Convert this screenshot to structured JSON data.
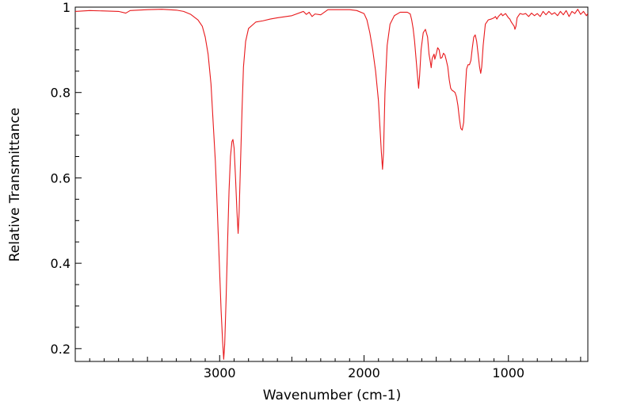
{
  "chart_data": {
    "type": "line",
    "title": "",
    "xlabel": "Wavenumber (cm-1)",
    "ylabel": "Relative Transmittance",
    "xlim": [
      4000,
      450
    ],
    "ylim": [
      0.17,
      1.0
    ],
    "x_reversed": true,
    "grid": false,
    "legend": "none",
    "x_ticks": [
      3000,
      2000,
      1000
    ],
    "x_tick_labels": [
      "3000",
      "2000",
      "1000"
    ],
    "y_ticks": [
      0.2,
      0.4,
      0.6,
      0.8,
      1.0
    ],
    "y_tick_labels": [
      "0.2",
      "0.4",
      "0.6",
      "0.8",
      "1"
    ],
    "series": [
      {
        "color": "#e8191c",
        "points": [
          [
            4000,
            0.99
          ],
          [
            3900,
            0.992
          ],
          [
            3800,
            0.991
          ],
          [
            3700,
            0.99
          ],
          [
            3650,
            0.986
          ],
          [
            3620,
            0.992
          ],
          [
            3500,
            0.994
          ],
          [
            3400,
            0.995
          ],
          [
            3300,
            0.993
          ],
          [
            3250,
            0.99
          ],
          [
            3200,
            0.983
          ],
          [
            3150,
            0.97
          ],
          [
            3120,
            0.955
          ],
          [
            3100,
            0.93
          ],
          [
            3080,
            0.89
          ],
          [
            3060,
            0.82
          ],
          [
            3050,
            0.76
          ],
          [
            3040,
            0.7
          ],
          [
            3030,
            0.64
          ],
          [
            3020,
            0.56
          ],
          [
            3010,
            0.47
          ],
          [
            3000,
            0.38
          ],
          [
            2990,
            0.29
          ],
          [
            2980,
            0.22
          ],
          [
            2972,
            0.175
          ],
          [
            2965,
            0.21
          ],
          [
            2955,
            0.32
          ],
          [
            2945,
            0.45
          ],
          [
            2935,
            0.57
          ],
          [
            2925,
            0.65
          ],
          [
            2915,
            0.685
          ],
          [
            2908,
            0.69
          ],
          [
            2900,
            0.67
          ],
          [
            2890,
            0.6
          ],
          [
            2880,
            0.52
          ],
          [
            2872,
            0.47
          ],
          [
            2865,
            0.52
          ],
          [
            2855,
            0.64
          ],
          [
            2845,
            0.76
          ],
          [
            2835,
            0.86
          ],
          [
            2820,
            0.92
          ],
          [
            2800,
            0.95
          ],
          [
            2750,
            0.965
          ],
          [
            2700,
            0.968
          ],
          [
            2650,
            0.972
          ],
          [
            2600,
            0.975
          ],
          [
            2500,
            0.98
          ],
          [
            2420,
            0.99
          ],
          [
            2400,
            0.983
          ],
          [
            2380,
            0.988
          ],
          [
            2360,
            0.978
          ],
          [
            2340,
            0.984
          ],
          [
            2300,
            0.982
          ],
          [
            2250,
            0.994
          ],
          [
            2150,
            0.994
          ],
          [
            2100,
            0.994
          ],
          [
            2050,
            0.992
          ],
          [
            2000,
            0.985
          ],
          [
            1980,
            0.97
          ],
          [
            1960,
            0.94
          ],
          [
            1940,
            0.9
          ],
          [
            1920,
            0.85
          ],
          [
            1900,
            0.78
          ],
          [
            1890,
            0.72
          ],
          [
            1880,
            0.66
          ],
          [
            1872,
            0.62
          ],
          [
            1865,
            0.66
          ],
          [
            1855,
            0.8
          ],
          [
            1840,
            0.91
          ],
          [
            1820,
            0.96
          ],
          [
            1790,
            0.98
          ],
          [
            1750,
            0.988
          ],
          [
            1700,
            0.988
          ],
          [
            1680,
            0.984
          ],
          [
            1670,
            0.97
          ],
          [
            1660,
            0.95
          ],
          [
            1650,
            0.92
          ],
          [
            1640,
            0.88
          ],
          [
            1630,
            0.84
          ],
          [
            1622,
            0.81
          ],
          [
            1615,
            0.84
          ],
          [
            1605,
            0.9
          ],
          [
            1590,
            0.94
          ],
          [
            1575,
            0.948
          ],
          [
            1560,
            0.93
          ],
          [
            1550,
            0.89
          ],
          [
            1540,
            0.87
          ],
          [
            1535,
            0.858
          ],
          [
            1528,
            0.88
          ],
          [
            1515,
            0.89
          ],
          [
            1510,
            0.878
          ],
          [
            1500,
            0.89
          ],
          [
            1490,
            0.905
          ],
          [
            1480,
            0.9
          ],
          [
            1470,
            0.88
          ],
          [
            1460,
            0.882
          ],
          [
            1450,
            0.892
          ],
          [
            1440,
            0.888
          ],
          [
            1430,
            0.875
          ],
          [
            1420,
            0.86
          ],
          [
            1410,
            0.83
          ],
          [
            1400,
            0.81
          ],
          [
            1390,
            0.805
          ],
          [
            1380,
            0.803
          ],
          [
            1370,
            0.8
          ],
          [
            1360,
            0.79
          ],
          [
            1350,
            0.77
          ],
          [
            1340,
            0.74
          ],
          [
            1330,
            0.716
          ],
          [
            1320,
            0.712
          ],
          [
            1310,
            0.73
          ],
          [
            1300,
            0.8
          ],
          [
            1290,
            0.855
          ],
          [
            1280,
            0.865
          ],
          [
            1270,
            0.865
          ],
          [
            1260,
            0.875
          ],
          [
            1250,
            0.905
          ],
          [
            1240,
            0.93
          ],
          [
            1230,
            0.935
          ],
          [
            1220,
            0.92
          ],
          [
            1210,
            0.89
          ],
          [
            1200,
            0.86
          ],
          [
            1192,
            0.845
          ],
          [
            1185,
            0.86
          ],
          [
            1175,
            0.91
          ],
          [
            1160,
            0.96
          ],
          [
            1140,
            0.97
          ],
          [
            1120,
            0.972
          ],
          [
            1100,
            0.975
          ],
          [
            1090,
            0.978
          ],
          [
            1080,
            0.972
          ],
          [
            1070,
            0.978
          ],
          [
            1050,
            0.985
          ],
          [
            1040,
            0.98
          ],
          [
            1020,
            0.985
          ],
          [
            1000,
            0.975
          ],
          [
            990,
            0.972
          ],
          [
            980,
            0.965
          ],
          [
            970,
            0.96
          ],
          [
            960,
            0.955
          ],
          [
            955,
            0.948
          ],
          [
            948,
            0.955
          ],
          [
            940,
            0.975
          ],
          [
            920,
            0.985
          ],
          [
            900,
            0.983
          ],
          [
            880,
            0.985
          ],
          [
            860,
            0.978
          ],
          [
            840,
            0.986
          ],
          [
            820,
            0.98
          ],
          [
            800,
            0.985
          ],
          [
            780,
            0.978
          ],
          [
            760,
            0.99
          ],
          [
            740,
            0.982
          ],
          [
            720,
            0.99
          ],
          [
            700,
            0.983
          ],
          [
            680,
            0.987
          ],
          [
            660,
            0.98
          ],
          [
            640,
            0.99
          ],
          [
            620,
            0.982
          ],
          [
            600,
            0.992
          ],
          [
            580,
            0.978
          ],
          [
            560,
            0.99
          ],
          [
            540,
            0.985
          ],
          [
            520,
            0.995
          ],
          [
            500,
            0.983
          ],
          [
            480,
            0.99
          ],
          [
            460,
            0.98
          ],
          [
            450,
            0.985
          ]
        ]
      }
    ]
  }
}
